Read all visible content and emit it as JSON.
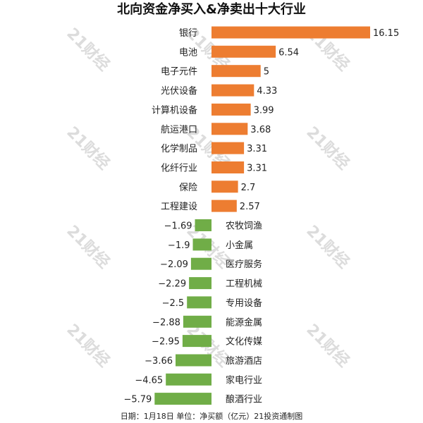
{
  "chart_data": {
    "type": "bar",
    "orientation": "horizontal",
    "title": "北向资金净买入&净卖出十大行业",
    "footer": "日期：1月18日 单位：净买额（亿元）21投资通制图",
    "categories": [
      "银行",
      "电池",
      "电子元件",
      "光伏设备",
      "计算机设备",
      "航运港口",
      "化学制品",
      "化纤行业",
      "保险",
      "工程建设",
      "农牧饲渔",
      "小金属",
      "医疗服务",
      "工程机械",
      "专用设备",
      "能源金属",
      "文化传媒",
      "旅游酒店",
      "家电行业",
      "酿酒行业"
    ],
    "value_labels": [
      "16.15",
      "6.54",
      "5",
      "4.33",
      "3.99",
      "3.68",
      "3.31",
      "3.31",
      "2.7",
      "2.57",
      "−1.69",
      "−1.9",
      "−2.09",
      "−2.29",
      "−2.5",
      "−2.88",
      "−2.95",
      "−3.66",
      "−4.65",
      "−5.79"
    ],
    "values": [
      16.15,
      6.54,
      5,
      4.33,
      3.99,
      3.68,
      3.31,
      3.31,
      2.7,
      2.57,
      -1.69,
      -1.9,
      -2.09,
      -2.29,
      -2.5,
      -2.88,
      -2.95,
      -3.66,
      -4.65,
      -5.79
    ],
    "colors": {
      "positive": "#ED7D31",
      "negative": "#70AD47"
    },
    "grid": false,
    "legend": "none"
  },
  "watermark": "21财经"
}
